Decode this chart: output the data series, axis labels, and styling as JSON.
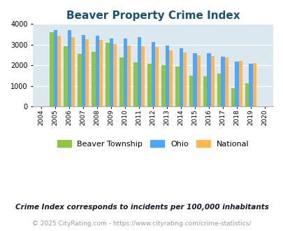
{
  "title": "Beaver Property Crime Index",
  "all_years": [
    2004,
    2005,
    2006,
    2007,
    2008,
    2009,
    2010,
    2011,
    2012,
    2013,
    2014,
    2015,
    2016,
    2017,
    2018,
    2019,
    2020
  ],
  "beaver": [
    0,
    3580,
    2920,
    2530,
    2640,
    3080,
    2380,
    2150,
    2060,
    2010,
    1930,
    1490,
    1460,
    1600,
    900,
    1130,
    0
  ],
  "ohio": [
    0,
    3680,
    3680,
    3460,
    3440,
    3300,
    3280,
    3360,
    3110,
    2960,
    2820,
    2580,
    2570,
    2410,
    2180,
    2060,
    0
  ],
  "national": [
    0,
    3430,
    3360,
    3270,
    3220,
    3020,
    2940,
    2920,
    2870,
    2730,
    2610,
    2490,
    2450,
    2360,
    2210,
    2090,
    0
  ],
  "beaver_color": "#8dc63f",
  "ohio_color": "#4da6ff",
  "national_color": "#ffb74d",
  "bg_color": "#dce8f0",
  "ylim": [
    0,
    4000
  ],
  "yticks": [
    0,
    1000,
    2000,
    3000,
    4000
  ],
  "legend_labels": [
    "Beaver Township",
    "Ohio",
    "National"
  ],
  "footnote1": "Crime Index corresponds to incidents per 100,000 inhabitants",
  "footnote2": "© 2025 CityRating.com - https://www.cityrating.com/crime-statistics/",
  "title_color": "#1a5276",
  "footnote1_color": "#1a1a2e",
  "footnote2_color": "#999999"
}
